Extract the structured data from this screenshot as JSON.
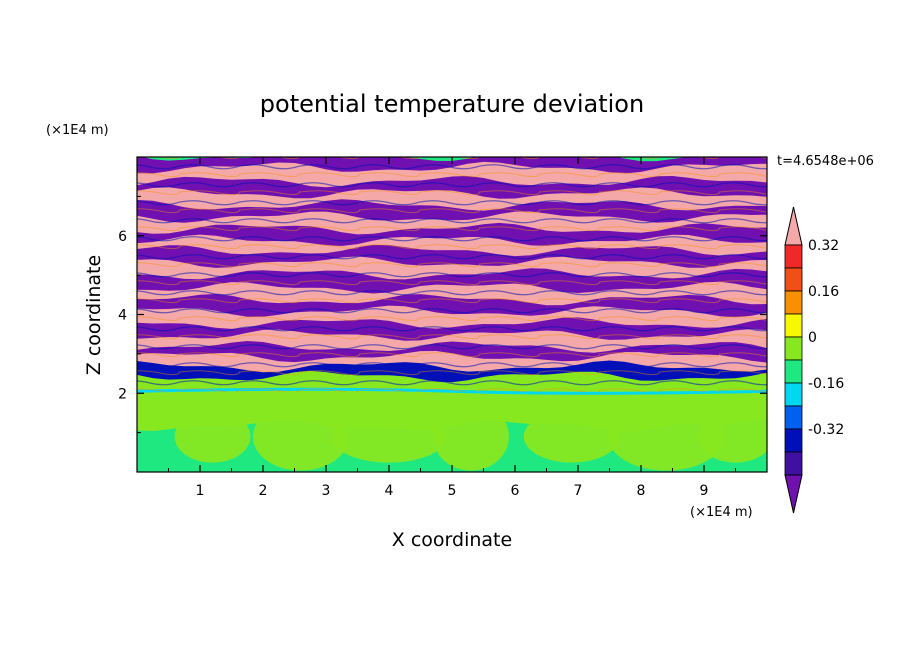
{
  "chart_data": {
    "type": "heatmap",
    "title": "potential temperature deviation",
    "xlabel": "X coordinate",
    "ylabel": "Z coordinate",
    "x_unit": "(×1E4 m)",
    "y_unit": "(×1E4 m)",
    "time_label": "t=4.6548e+06",
    "xlim": [
      0,
      10
    ],
    "ylim": [
      0,
      8
    ],
    "x_ticks": [
      "1",
      "2",
      "3",
      "4",
      "5",
      "6",
      "7",
      "8",
      "9"
    ],
    "y_ticks": [
      "2",
      "4",
      "6"
    ],
    "colorbar": {
      "tick_labels": [
        "0.32",
        "0.16",
        "0",
        "-0.16",
        "-0.32"
      ],
      "levels": [
        {
          "value": 0.4,
          "color": "#f4a8a8"
        },
        {
          "value": 0.32,
          "color": "#f02828"
        },
        {
          "value": 0.24,
          "color": "#f05018"
        },
        {
          "value": 0.16,
          "color": "#f89000"
        },
        {
          "value": 0.08,
          "color": "#f8f800"
        },
        {
          "value": 0.0,
          "color": "#88e820"
        },
        {
          "value": -0.08,
          "color": "#20e880"
        },
        {
          "value": -0.16,
          "color": "#00d8f0"
        },
        {
          "value": -0.24,
          "color": "#0060f0"
        },
        {
          "value": -0.32,
          "color": "#0010b8"
        },
        {
          "value": -0.4,
          "color": "#4010a0"
        },
        {
          "value": -0.48,
          "color": "#7010b0"
        }
      ]
    },
    "bands": [
      {
        "z": 7.85,
        "value": -0.48
      },
      {
        "z": 7.55,
        "value": 0.4
      },
      {
        "z": 7.2,
        "value": -0.48
      },
      {
        "z": 6.9,
        "value": 0.4
      },
      {
        "z": 6.6,
        "value": -0.48
      },
      {
        "z": 6.3,
        "value": 0.4
      },
      {
        "z": 6.0,
        "value": -0.48
      },
      {
        "z": 5.7,
        "value": 0.4
      },
      {
        "z": 5.45,
        "value": -0.48
      },
      {
        "z": 5.15,
        "value": 0.4
      },
      {
        "z": 4.85,
        "value": -0.48
      },
      {
        "z": 4.5,
        "value": 0.4
      },
      {
        "z": 4.2,
        "value": -0.48
      },
      {
        "z": 3.9,
        "value": 0.4
      },
      {
        "z": 3.6,
        "value": -0.48
      },
      {
        "z": 3.3,
        "value": 0.4
      },
      {
        "z": 3.0,
        "value": -0.48
      },
      {
        "z": 2.75,
        "value": 0.4
      },
      {
        "z": 2.5,
        "value": -0.32
      },
      {
        "z": 2.25,
        "value": 0.0
      },
      {
        "z": 1.0,
        "value": -0.08
      }
    ]
  }
}
